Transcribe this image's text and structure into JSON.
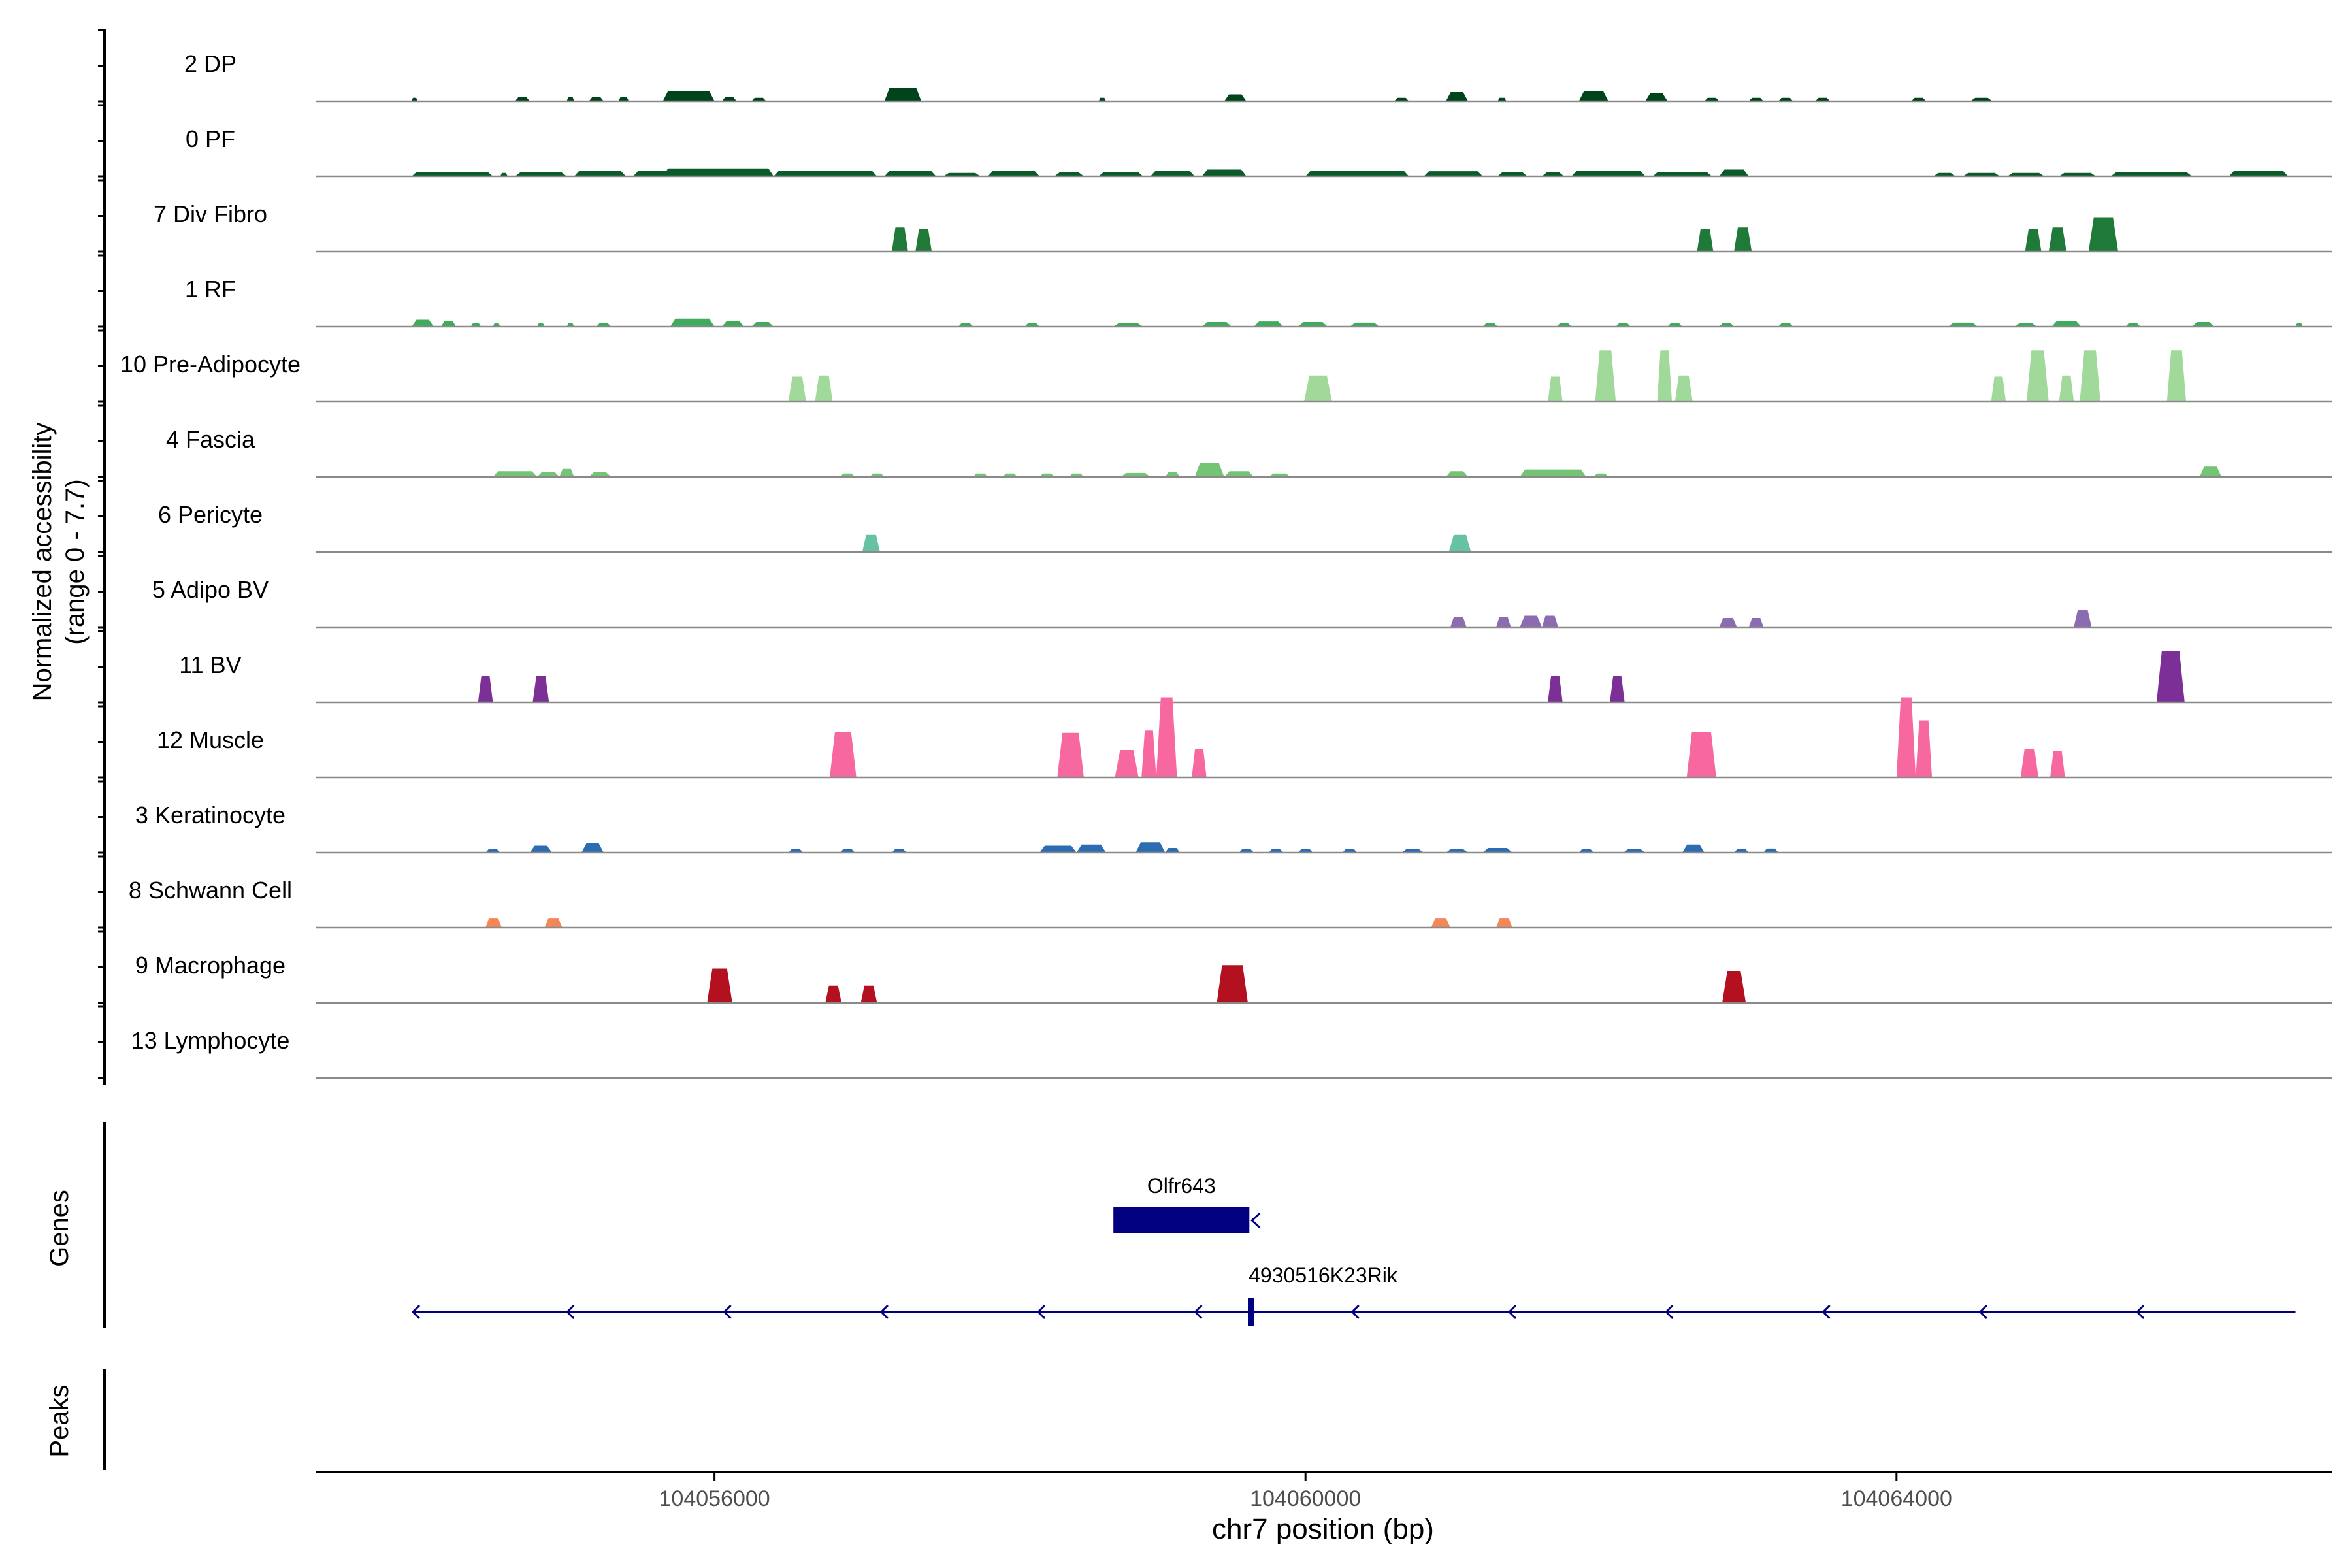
{
  "chart_data": {
    "type": "area",
    "ylabel_line1": "Normalized accessibility",
    "ylabel_line2": "(range 0 - 7.7)",
    "xlabel": "chr7 position (bp)",
    "xlim": [
      104053300,
      104066950
    ],
    "ylim": [
      0,
      7.7
    ],
    "xticks": [
      104056000,
      104060000,
      104064000
    ],
    "xtick_labels": [
      "104056000",
      "104060000",
      "104064000"
    ],
    "grid": false,
    "legend": "none",
    "tracks": [
      {
        "name": "2 DP",
        "color": "#00441b",
        "peaks": [
          [
            104053950,
            104053990,
            0.3
          ],
          [
            104054650,
            104054750,
            0.35
          ],
          [
            104055000,
            104055050,
            0.4
          ],
          [
            104055150,
            104055250,
            0.35
          ],
          [
            104055350,
            104055420,
            0.4
          ],
          [
            104055650,
            104056000,
            0.9
          ],
          [
            104056050,
            104056150,
            0.35
          ],
          [
            104056250,
            104056350,
            0.3
          ],
          [
            104057150,
            104057400,
            1.2
          ],
          [
            104058600,
            104058650,
            0.3
          ],
          [
            104059450,
            104059600,
            0.6
          ],
          [
            104060600,
            104060700,
            0.3
          ],
          [
            104060950,
            104061100,
            0.8
          ],
          [
            104061300,
            104061360,
            0.3
          ],
          [
            104061850,
            104062050,
            0.9
          ],
          [
            104062300,
            104062450,
            0.7
          ],
          [
            104062700,
            104062800,
            0.3
          ],
          [
            104063000,
            104063100,
            0.3
          ],
          [
            104063200,
            104063300,
            0.3
          ],
          [
            104063450,
            104063550,
            0.3
          ],
          [
            104064100,
            104064200,
            0.3
          ],
          [
            104064500,
            104064650,
            0.3
          ]
        ]
      },
      {
        "name": "0 PF",
        "color": "#0a5a2a",
        "peaks": [
          [
            104053950,
            104054500,
            0.4
          ],
          [
            104054550,
            104054600,
            0.3
          ],
          [
            104054650,
            104055000,
            0.35
          ],
          [
            104055050,
            104055400,
            0.5
          ],
          [
            104055450,
            104056000,
            0.5
          ],
          [
            104055650,
            104056400,
            0.7
          ],
          [
            104056400,
            104057100,
            0.5
          ],
          [
            104057150,
            104057500,
            0.5
          ],
          [
            104057550,
            104057800,
            0.3
          ],
          [
            104057850,
            104058200,
            0.5
          ],
          [
            104058300,
            104058500,
            0.35
          ],
          [
            104058600,
            104058900,
            0.4
          ],
          [
            104058950,
            104059250,
            0.5
          ],
          [
            104059300,
            104059600,
            0.6
          ],
          [
            104060000,
            104060700,
            0.5
          ],
          [
            104060800,
            104061200,
            0.45
          ],
          [
            104061300,
            104061500,
            0.4
          ],
          [
            104061600,
            104061750,
            0.35
          ],
          [
            104061800,
            104062300,
            0.5
          ],
          [
            104062350,
            104062750,
            0.4
          ],
          [
            104062800,
            104063000,
            0.6
          ],
          [
            104064250,
            104064400,
            0.3
          ],
          [
            104064450,
            104064700,
            0.3
          ],
          [
            104064750,
            104065000,
            0.3
          ],
          [
            104065100,
            104065350,
            0.3
          ],
          [
            104065450,
            104066000,
            0.35
          ],
          [
            104066250,
            104066650,
            0.5
          ]
        ]
      },
      {
        "name": "7 Div Fibro",
        "color": "#1f7a3a",
        "peaks": [
          [
            104057200,
            104057310,
            2.1
          ],
          [
            104057360,
            104057470,
            2.0
          ],
          [
            104062650,
            104062760,
            2.0
          ],
          [
            104062900,
            104063020,
            2.1
          ],
          [
            104064870,
            104064980,
            2.0
          ],
          [
            104065030,
            104065150,
            2.1
          ],
          [
            104065300,
            104065500,
            3.0
          ]
        ]
      },
      {
        "name": "1 RF",
        "color": "#41ab5d",
        "peaks": [
          [
            104053950,
            104054100,
            0.6
          ],
          [
            104054150,
            104054250,
            0.5
          ],
          [
            104054350,
            104054420,
            0.3
          ],
          [
            104054500,
            104054550,
            0.3
          ],
          [
            104054800,
            104054850,
            0.3
          ],
          [
            104055000,
            104055050,
            0.3
          ],
          [
            104055200,
            104055300,
            0.3
          ],
          [
            104055700,
            104056000,
            0.7
          ],
          [
            104056050,
            104056200,
            0.5
          ],
          [
            104056250,
            104056400,
            0.4
          ],
          [
            104057650,
            104057750,
            0.3
          ],
          [
            104058100,
            104058200,
            0.3
          ],
          [
            104058700,
            104058900,
            0.3
          ],
          [
            104059300,
            104059500,
            0.4
          ],
          [
            104059650,
            104059850,
            0.45
          ],
          [
            104059950,
            104060150,
            0.4
          ],
          [
            104060300,
            104060500,
            0.35
          ],
          [
            104061200,
            104061300,
            0.3
          ],
          [
            104061700,
            104061800,
            0.3
          ],
          [
            104062100,
            104062200,
            0.3
          ],
          [
            104062450,
            104062550,
            0.3
          ],
          [
            104062800,
            104062900,
            0.3
          ],
          [
            104063200,
            104063300,
            0.3
          ],
          [
            104064350,
            104064550,
            0.35
          ],
          [
            104064800,
            104064950,
            0.3
          ],
          [
            104065050,
            104065250,
            0.5
          ],
          [
            104065550,
            104065650,
            0.3
          ],
          [
            104066000,
            104066150,
            0.4
          ],
          [
            104066700,
            104066750,
            0.3
          ]
        ]
      },
      {
        "name": "10 Pre-Adipocyte",
        "color": "#a1d99b",
        "peaks": [
          [
            104056500,
            104056620,
            2.2
          ],
          [
            104056680,
            104056800,
            2.3
          ],
          [
            104059990,
            104060180,
            2.3
          ],
          [
            104061640,
            104061740,
            2.2
          ],
          [
            104061960,
            104062100,
            4.5
          ],
          [
            104062380,
            104062480,
            4.5
          ],
          [
            104062500,
            104062620,
            2.3
          ],
          [
            104064640,
            104064740,
            2.2
          ],
          [
            104064880,
            104065030,
            4.5
          ],
          [
            104065100,
            104065200,
            2.3
          ],
          [
            104065240,
            104065380,
            4.5
          ],
          [
            104065830,
            104065960,
            4.5
          ]
        ]
      },
      {
        "name": "4 Fascia",
        "color": "#74c476",
        "peaks": [
          [
            104054500,
            104054800,
            0.5
          ],
          [
            104054800,
            104054950,
            0.45
          ],
          [
            104054950,
            104055050,
            0.7
          ],
          [
            104055150,
            104055300,
            0.4
          ],
          [
            104056850,
            104056950,
            0.3
          ],
          [
            104057050,
            104057150,
            0.3
          ],
          [
            104057750,
            104057850,
            0.3
          ],
          [
            104057950,
            104058050,
            0.3
          ],
          [
            104058200,
            104058300,
            0.3
          ],
          [
            104058400,
            104058500,
            0.3
          ],
          [
            104058750,
            104058950,
            0.35
          ],
          [
            104059050,
            104059150,
            0.4
          ],
          [
            104059250,
            104059450,
            1.2
          ],
          [
            104059450,
            104059650,
            0.5
          ],
          [
            104059750,
            104059900,
            0.3
          ],
          [
            104060950,
            104061100,
            0.5
          ],
          [
            104061450,
            104061900,
            0.65
          ],
          [
            104061950,
            104062050,
            0.3
          ],
          [
            104066050,
            104066200,
            0.9
          ]
        ]
      },
      {
        "name": "6 Pericyte",
        "color": "#66c2a4",
        "peaks": [
          [
            104057000,
            104057120,
            1.5
          ],
          [
            104060970,
            104061120,
            1.5
          ]
        ]
      },
      {
        "name": "5 Adipo BV",
        "color": "#8c6bb1",
        "peaks": [
          [
            104060980,
            104061090,
            0.9
          ],
          [
            104061290,
            104061390,
            0.9
          ],
          [
            104061450,
            104061600,
            1.0
          ],
          [
            104061600,
            104061710,
            1.0
          ],
          [
            104062800,
            104062920,
            0.8
          ],
          [
            104063000,
            104063100,
            0.8
          ],
          [
            104065200,
            104065320,
            1.5
          ]
        ]
      },
      {
        "name": "11 BV",
        "color": "#7b2f97",
        "peaks": [
          [
            104054400,
            104054500,
            2.3
          ],
          [
            104054770,
            104054880,
            2.3
          ],
          [
            104061640,
            104061740,
            2.3
          ],
          [
            104062060,
            104062160,
            2.3
          ],
          [
            104065760,
            104065950,
            4.5
          ]
        ]
      },
      {
        "name": "12 Muscle",
        "color": "#f768a1",
        "peaks": [
          [
            104056780,
            104056960,
            4.0
          ],
          [
            104058320,
            104058500,
            3.9
          ],
          [
            104058710,
            104058870,
            2.4
          ],
          [
            104058890,
            104058990,
            4.1
          ],
          [
            104058990,
            104059130,
            7.0
          ],
          [
            104059230,
            104059330,
            2.5
          ],
          [
            104062580,
            104062780,
            4.0
          ],
          [
            104064000,
            104064130,
            7.0
          ],
          [
            104064130,
            104064240,
            5.0
          ],
          [
            104064840,
            104064960,
            2.5
          ],
          [
            104065040,
            104065140,
            2.3
          ]
        ]
      },
      {
        "name": "3 Keratinocyte",
        "color": "#2c6db2",
        "peaks": [
          [
            104054450,
            104054550,
            0.3
          ],
          [
            104054750,
            104054900,
            0.6
          ],
          [
            104055100,
            104055250,
            0.8
          ],
          [
            104056500,
            104056600,
            0.3
          ],
          [
            104056850,
            104056950,
            0.3
          ],
          [
            104057200,
            104057300,
            0.3
          ],
          [
            104058200,
            104058450,
            0.6
          ],
          [
            104058450,
            104058650,
            0.7
          ],
          [
            104058850,
            104059050,
            0.9
          ],
          [
            104059050,
            104059150,
            0.4
          ],
          [
            104059550,
            104059650,
            0.3
          ],
          [
            104059750,
            104059850,
            0.3
          ],
          [
            104059950,
            104060050,
            0.3
          ],
          [
            104060250,
            104060350,
            0.3
          ],
          [
            104060650,
            104060800,
            0.3
          ],
          [
            104060950,
            104061100,
            0.3
          ],
          [
            104061200,
            104061400,
            0.4
          ],
          [
            104061850,
            104061950,
            0.3
          ],
          [
            104062150,
            104062300,
            0.3
          ],
          [
            104062550,
            104062700,
            0.7
          ],
          [
            104062900,
            104063000,
            0.3
          ],
          [
            104063100,
            104063200,
            0.35
          ]
        ]
      },
      {
        "name": "8 Schwann Cell",
        "color": "#f4875a",
        "peaks": [
          [
            104054450,
            104054560,
            0.85
          ],
          [
            104054850,
            104054970,
            0.85
          ],
          [
            104060850,
            104060980,
            0.85
          ],
          [
            104061290,
            104061400,
            0.85
          ]
        ]
      },
      {
        "name": "9 Macrophage",
        "color": "#b3111f",
        "peaks": [
          [
            104055950,
            104056120,
            3.0
          ],
          [
            104056750,
            104056860,
            1.5
          ],
          [
            104056990,
            104057100,
            1.5
          ],
          [
            104059400,
            104059610,
            3.3
          ],
          [
            104062820,
            104062980,
            2.8
          ]
        ]
      },
      {
        "name": "13 Lymphocyte",
        "color": "#253494",
        "peaks": []
      }
    ],
    "genes_label": "Genes",
    "peaks_label": "Peaks",
    "genes": [
      {
        "name": "Olfr643",
        "start": 104058700,
        "end": 104059620,
        "strand": "-",
        "exons": [
          [
            104058700,
            104059620
          ]
        ]
      },
      {
        "name": "4930516K23Rik",
        "start": 104053950,
        "end": 104066700,
        "strand": "-",
        "exons": [
          [
            104059610,
            104059650
          ]
        ]
      }
    ],
    "gene_line_color": "#000080",
    "axis_color": "#000000",
    "baseline_color": "#8a8a8a"
  }
}
